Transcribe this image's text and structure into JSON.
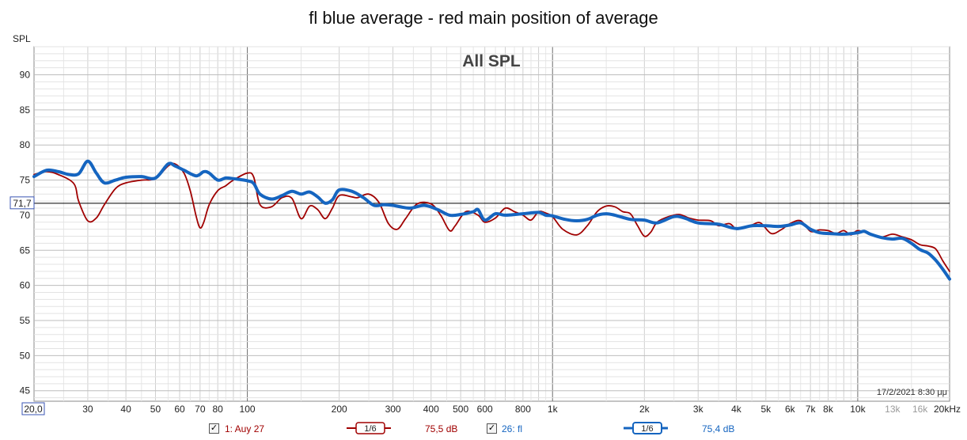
{
  "title": "fl blue average - red main position of average",
  "chart_data": {
    "type": "line",
    "inner_title": "All SPL",
    "ylabel": "SPL",
    "xscale": "log",
    "xlim": [
      20,
      20000
    ],
    "ylim": [
      43.5,
      94
    ],
    "y_ticks": [
      45,
      50,
      55,
      60,
      65,
      70,
      75,
      80,
      85,
      90
    ],
    "x_ticks": [
      {
        "v": 20,
        "label": "20,0"
      },
      {
        "v": 30,
        "label": "30"
      },
      {
        "v": 40,
        "label": "40"
      },
      {
        "v": 50,
        "label": "50"
      },
      {
        "v": 60,
        "label": "60"
      },
      {
        "v": 70,
        "label": "70"
      },
      {
        "v": 80,
        "label": "80"
      },
      {
        "v": 100,
        "label": "100"
      },
      {
        "v": 200,
        "label": "200"
      },
      {
        "v": 300,
        "label": "300"
      },
      {
        "v": 400,
        "label": "400"
      },
      {
        "v": 500,
        "label": "500"
      },
      {
        "v": 600,
        "label": "600"
      },
      {
        "v": 800,
        "label": "800"
      },
      {
        "v": 1000,
        "label": "1k"
      },
      {
        "v": 2000,
        "label": "2k"
      },
      {
        "v": 3000,
        "label": "3k"
      },
      {
        "v": 4000,
        "label": "4k"
      },
      {
        "v": 5000,
        "label": "5k"
      },
      {
        "v": 6000,
        "label": "6k"
      },
      {
        "v": 7000,
        "label": "7k"
      },
      {
        "v": 8000,
        "label": "8k"
      },
      {
        "v": 10000,
        "label": "10k"
      },
      {
        "v": 13000,
        "label": "13k",
        "muted": true
      },
      {
        "v": 16000,
        "label": "16k",
        "muted": true
      },
      {
        "v": 20000,
        "label": "20kHz"
      }
    ],
    "cursor": {
      "y": 71.7,
      "label": "71,7"
    },
    "timestamp": "17/2/2021 8:30 μμ",
    "grid": true,
    "series": [
      {
        "name": "1: Auy 27",
        "color": "#a00000",
        "level": "75,5 dB",
        "smoothing": "1/6",
        "points": [
          [
            20,
            75.8
          ],
          [
            22,
            76.2
          ],
          [
            24,
            75.8
          ],
          [
            27,
            74.5
          ],
          [
            28,
            72.0
          ],
          [
            30,
            69.2
          ],
          [
            32,
            69.6
          ],
          [
            34,
            71.5
          ],
          [
            37,
            73.8
          ],
          [
            40,
            74.6
          ],
          [
            45,
            75.0
          ],
          [
            50,
            75.2
          ],
          [
            55,
            77.0
          ],
          [
            58,
            77.3
          ],
          [
            62,
            76.0
          ],
          [
            65,
            73.5
          ],
          [
            68,
            69.8
          ],
          [
            70,
            68.2
          ],
          [
            72,
            69.0
          ],
          [
            75,
            71.5
          ],
          [
            80,
            73.5
          ],
          [
            85,
            74.2
          ],
          [
            90,
            75.0
          ],
          [
            100,
            76.0
          ],
          [
            105,
            75.4
          ],
          [
            110,
            71.5
          ],
          [
            120,
            71.2
          ],
          [
            130,
            72.5
          ],
          [
            140,
            72.4
          ],
          [
            150,
            69.5
          ],
          [
            160,
            71.3
          ],
          [
            170,
            70.8
          ],
          [
            180,
            69.5
          ],
          [
            190,
            71.0
          ],
          [
            200,
            72.8
          ],
          [
            220,
            72.6
          ],
          [
            230,
            72.5
          ],
          [
            250,
            73.0
          ],
          [
            270,
            71.8
          ],
          [
            290,
            68.8
          ],
          [
            310,
            68.0
          ],
          [
            330,
            69.5
          ],
          [
            360,
            71.6
          ],
          [
            400,
            71.6
          ],
          [
            430,
            70.0
          ],
          [
            460,
            67.8
          ],
          [
            480,
            68.5
          ],
          [
            520,
            70.5
          ],
          [
            570,
            70.0
          ],
          [
            600,
            69.0
          ],
          [
            650,
            69.6
          ],
          [
            700,
            71.0
          ],
          [
            750,
            70.5
          ],
          [
            800,
            70.0
          ],
          [
            850,
            69.3
          ],
          [
            900,
            70.5
          ],
          [
            950,
            70.3
          ],
          [
            1000,
            69.8
          ],
          [
            1080,
            68.0
          ],
          [
            1200,
            67.2
          ],
          [
            1300,
            68.5
          ],
          [
            1400,
            70.5
          ],
          [
            1500,
            71.3
          ],
          [
            1600,
            71.2
          ],
          [
            1700,
            70.5
          ],
          [
            1800,
            70.2
          ],
          [
            1900,
            68.5
          ],
          [
            2000,
            67.0
          ],
          [
            2100,
            67.6
          ],
          [
            2200,
            69.0
          ],
          [
            2400,
            69.8
          ],
          [
            2600,
            70.1
          ],
          [
            2800,
            69.6
          ],
          [
            3000,
            69.3
          ],
          [
            3300,
            69.2
          ],
          [
            3500,
            68.5
          ],
          [
            3800,
            68.8
          ],
          [
            4000,
            68.0
          ],
          [
            4200,
            68.2
          ],
          [
            4500,
            68.6
          ],
          [
            4800,
            68.9
          ],
          [
            5200,
            67.4
          ],
          [
            5600,
            67.9
          ],
          [
            6000,
            68.8
          ],
          [
            6500,
            69.2
          ],
          [
            7000,
            67.7
          ],
          [
            7500,
            67.9
          ],
          [
            8000,
            67.8
          ],
          [
            8500,
            67.4
          ],
          [
            9000,
            67.8
          ],
          [
            9500,
            67.2
          ],
          [
            10000,
            67.8
          ],
          [
            11000,
            67.3
          ],
          [
            12000,
            66.9
          ],
          [
            13000,
            67.3
          ],
          [
            14000,
            66.9
          ],
          [
            15000,
            66.5
          ],
          [
            16000,
            65.8
          ],
          [
            17000,
            65.6
          ],
          [
            18000,
            65.2
          ],
          [
            19000,
            63.5
          ],
          [
            20000,
            62.0
          ]
        ]
      },
      {
        "name": "26: fl",
        "color": "#1565c0",
        "level": "75,4 dB",
        "smoothing": "1/6",
        "points": [
          [
            20,
            75.5
          ],
          [
            22,
            76.4
          ],
          [
            24,
            76.2
          ],
          [
            26,
            75.8
          ],
          [
            28,
            75.9
          ],
          [
            30,
            77.7
          ],
          [
            32,
            76.0
          ],
          [
            34,
            74.6
          ],
          [
            37,
            75.0
          ],
          [
            40,
            75.4
          ],
          [
            45,
            75.5
          ],
          [
            50,
            75.3
          ],
          [
            55,
            77.3
          ],
          [
            58,
            77.0
          ],
          [
            62,
            76.4
          ],
          [
            68,
            75.6
          ],
          [
            72,
            76.2
          ],
          [
            75,
            76.0
          ],
          [
            80,
            75.0
          ],
          [
            85,
            75.3
          ],
          [
            90,
            75.2
          ],
          [
            100,
            74.9
          ],
          [
            105,
            74.5
          ],
          [
            110,
            73.0
          ],
          [
            120,
            72.3
          ],
          [
            130,
            72.8
          ],
          [
            140,
            73.4
          ],
          [
            150,
            73.0
          ],
          [
            160,
            73.3
          ],
          [
            170,
            72.6
          ],
          [
            180,
            71.7
          ],
          [
            190,
            72.2
          ],
          [
            200,
            73.6
          ],
          [
            220,
            73.4
          ],
          [
            240,
            72.5
          ],
          [
            260,
            71.4
          ],
          [
            280,
            71.5
          ],
          [
            300,
            71.4
          ],
          [
            340,
            71.0
          ],
          [
            380,
            71.4
          ],
          [
            420,
            70.8
          ],
          [
            460,
            70.0
          ],
          [
            500,
            70.1
          ],
          [
            550,
            70.5
          ],
          [
            570,
            70.8
          ],
          [
            600,
            69.3
          ],
          [
            650,
            70.2
          ],
          [
            700,
            70.0
          ],
          [
            800,
            70.2
          ],
          [
            900,
            70.4
          ],
          [
            950,
            70.0
          ],
          [
            1000,
            69.9
          ],
          [
            1100,
            69.4
          ],
          [
            1200,
            69.2
          ],
          [
            1300,
            69.4
          ],
          [
            1400,
            70.0
          ],
          [
            1500,
            70.2
          ],
          [
            1600,
            70.0
          ],
          [
            1800,
            69.4
          ],
          [
            2000,
            69.3
          ],
          [
            2200,
            68.9
          ],
          [
            2500,
            69.8
          ],
          [
            2700,
            69.6
          ],
          [
            3000,
            68.9
          ],
          [
            3500,
            68.7
          ],
          [
            4000,
            68.1
          ],
          [
            4500,
            68.5
          ],
          [
            5000,
            68.5
          ],
          [
            5500,
            68.4
          ],
          [
            6000,
            68.6
          ],
          [
            6500,
            68.9
          ],
          [
            7000,
            68.0
          ],
          [
            7500,
            67.5
          ],
          [
            8000,
            67.4
          ],
          [
            9000,
            67.3
          ],
          [
            10000,
            67.5
          ],
          [
            10500,
            67.7
          ],
          [
            11000,
            67.3
          ],
          [
            12000,
            66.8
          ],
          [
            13000,
            66.6
          ],
          [
            14000,
            66.7
          ],
          [
            15000,
            66.0
          ],
          [
            16000,
            65.1
          ],
          [
            17000,
            64.6
          ],
          [
            18000,
            63.6
          ],
          [
            19000,
            62.3
          ],
          [
            20000,
            60.9
          ]
        ]
      }
    ]
  },
  "legend": {
    "items": [
      {
        "checkbox": "✓",
        "label": "1: Auy 27",
        "smoothing": "1/6",
        "level": "75,5 dB",
        "color": "#a00000"
      },
      {
        "checkbox": "✓",
        "label": "26: fl",
        "smoothing": "1/6",
        "level": "75,4 dB",
        "color": "#1565c0"
      }
    ]
  }
}
